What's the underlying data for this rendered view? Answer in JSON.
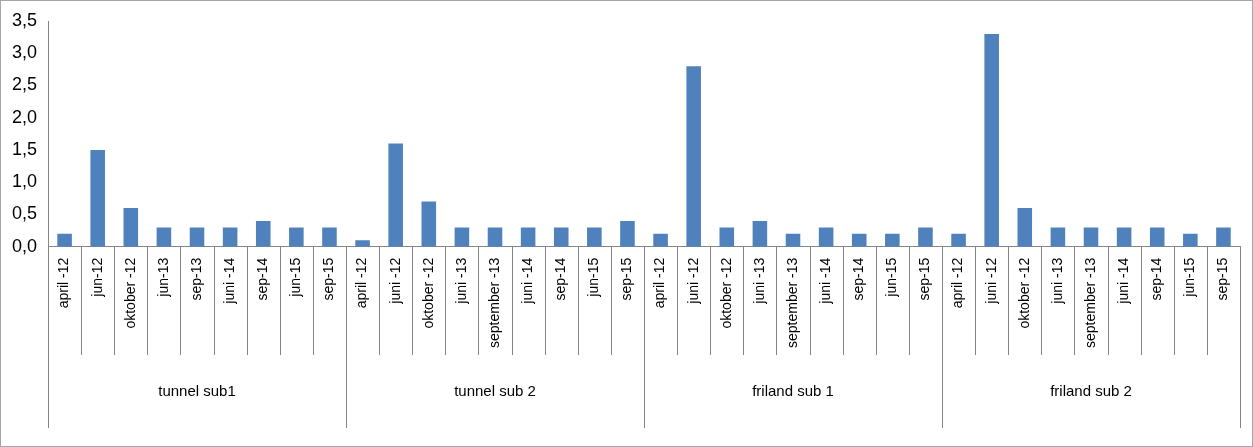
{
  "chart_data": {
    "type": "bar",
    "categories": [
      "april -12",
      "jun-12",
      "oktober -12",
      "jun-13",
      "sep-13",
      "juni -14",
      "sep-14",
      "jun-15",
      "sep-15",
      "april -12",
      "juni -12",
      "oktober -12",
      "juni -13",
      "september -13",
      "juni -14",
      "sep-14",
      "jun-15",
      "sep-15",
      "april -12",
      "juni -12",
      "oktober -12",
      "juni -13",
      "september -13",
      "juni -14",
      "sep-14",
      "jun-15",
      "sep-15",
      "april -12",
      "juni -12",
      "oktober -12",
      "juni -13",
      "september -13",
      "juni -14",
      "sep-14",
      "jun-15",
      "sep-15"
    ],
    "values": [
      0.2,
      1.5,
      0.6,
      0.3,
      0.3,
      0.3,
      0.4,
      0.3,
      0.3,
      0.1,
      1.6,
      0.7,
      0.3,
      0.3,
      0.3,
      0.3,
      0.3,
      0.4,
      0.2,
      2.8,
      0.3,
      0.4,
      0.2,
      0.3,
      0.2,
      0.2,
      0.3,
      0.2,
      3.3,
      0.6,
      0.3,
      0.3,
      0.3,
      0.3,
      0.2,
      0.3
    ],
    "color": "#4f81bd",
    "ylim": [
      0,
      3.5
    ],
    "yticks": [
      {
        "value": 0,
        "label": "0,0"
      },
      {
        "value": 0.5,
        "label": "0,5"
      },
      {
        "value": 1,
        "label": "1,0"
      },
      {
        "value": 1.5,
        "label": "1,5"
      },
      {
        "value": 2,
        "label": "2,0"
      },
      {
        "value": 2.5,
        "label": "2,5"
      },
      {
        "value": 3,
        "label": "3,0"
      },
      {
        "value": 3.5,
        "label": "3,5"
      }
    ],
    "annotations": [
      "tunnel sub1",
      "tunnel sub 2",
      "friland sub 1",
      "friland sub 2"
    ],
    "legend": false
  }
}
